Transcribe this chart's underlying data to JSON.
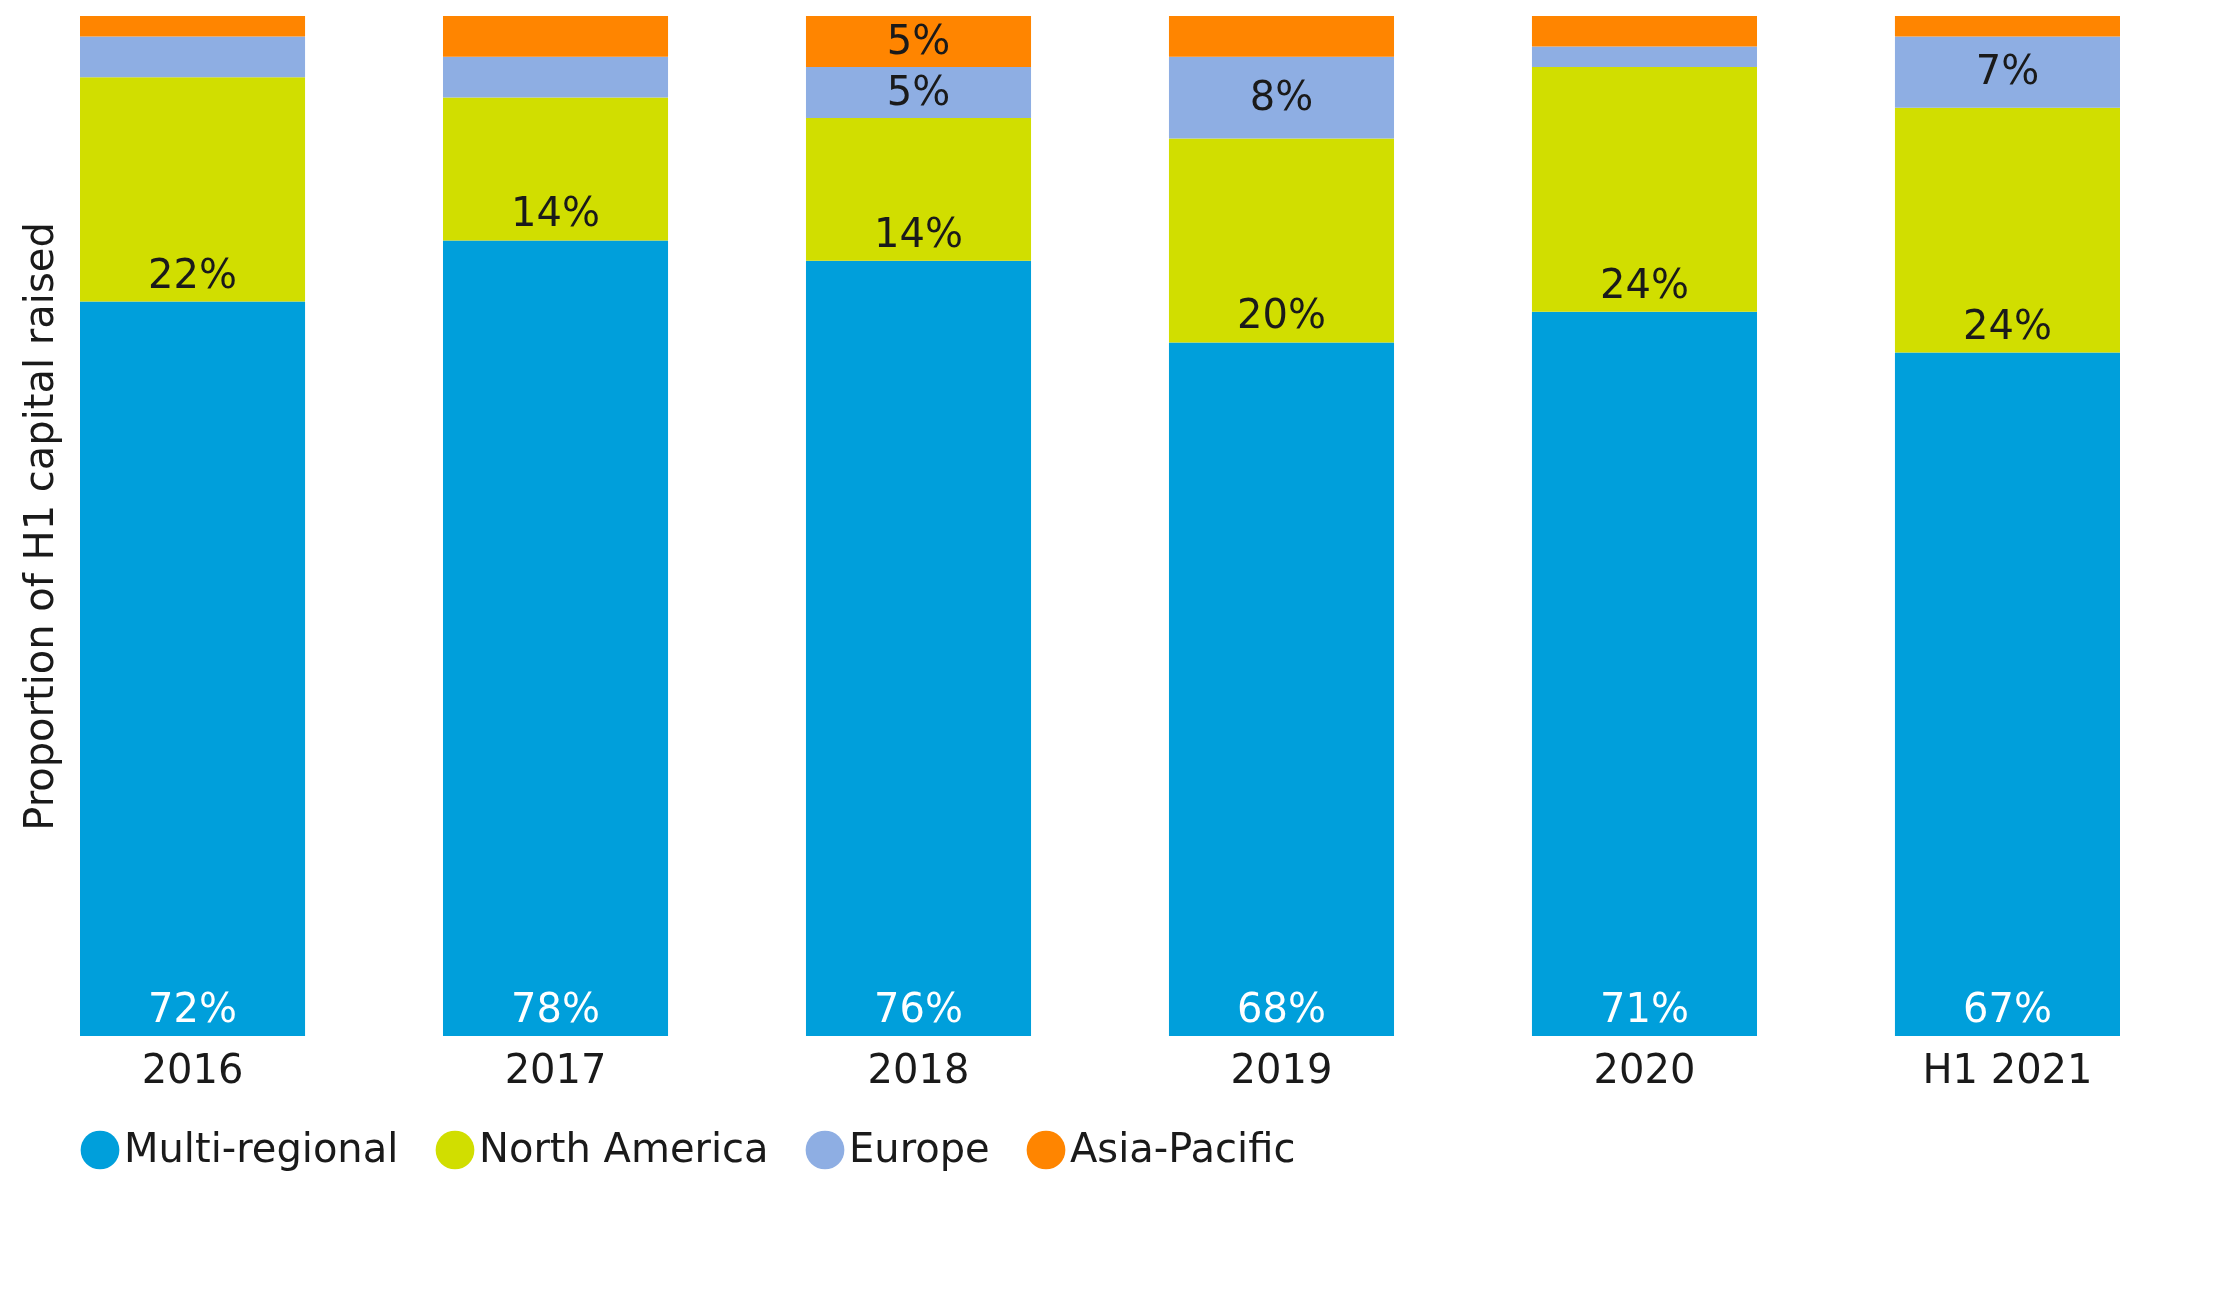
{
  "chart_data": {
    "type": "bar",
    "stacked": true,
    "ylabel": "Proportion of H1 capital raised",
    "categories": [
      "2016",
      "2017",
      "2018",
      "2019",
      "2020",
      "H1 2021"
    ],
    "legend": "bottom",
    "series": [
      {
        "name": "Multi-regional",
        "color": "#009fdb",
        "values": [
          72,
          78,
          76,
          68,
          71,
          67
        ],
        "value_labels": [
          "72%",
          "78%",
          "76%",
          "68%",
          "71%",
          "67%"
        ]
      },
      {
        "name": "North America",
        "color": "#d1de00",
        "values": [
          22,
          14,
          14,
          20,
          24,
          24
        ],
        "value_labels": [
          "22%",
          "14%",
          "14%",
          "20%",
          "24%",
          "24%"
        ]
      },
      {
        "name": "Europe",
        "color": "#8eaee3",
        "values": [
          4,
          4,
          5,
          8,
          2,
          7
        ],
        "value_labels": [
          null,
          null,
          "5%",
          "8%",
          null,
          "7%"
        ]
      },
      {
        "name": "Asia-Pacific",
        "color": "#ff8500",
        "values": [
          2,
          4,
          5,
          4,
          3,
          2
        ],
        "value_labels": [
          null,
          null,
          "5%",
          null,
          null,
          null
        ]
      }
    ]
  }
}
